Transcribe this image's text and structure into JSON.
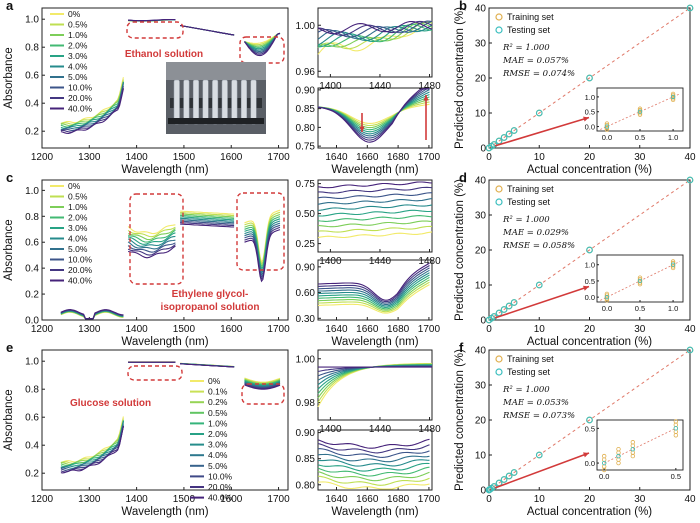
{
  "colors": {
    "dark_purple": "#3b1f63",
    "purple": "#46237a",
    "red_accent": "#d23a3a",
    "train_marker": "#e0b050",
    "test_marker": "#3cbfbf",
    "axis": "#222222"
  },
  "chart_data": [
    {
      "id": "a",
      "type": "line",
      "panel_label": "a",
      "annotation": "Ethanol solution",
      "photo": "photo-of-vials",
      "xlabel": "Wavelength (nm)",
      "ylabel": "Absorbance",
      "x_ticks": [
        "1200",
        "1300",
        "1400",
        "1500",
        "1600",
        "1700"
      ],
      "y_ticks": [
        "0.2",
        "0.4",
        "0.6",
        "0.8",
        "1.0"
      ],
      "xlim": [
        1200,
        1720
      ],
      "ylim": [
        0.08,
        1.08
      ],
      "legend": [
        "0%",
        "0.5%",
        "1.0%",
        "2.0%",
        "3.0%",
        "4.0%",
        "5.0%",
        "10.0%",
        "20.0%",
        "40.0%"
      ]
    },
    {
      "id": "a_zoom",
      "type": "line",
      "upper": {
        "x_ticks": [
          "1400",
          "1440",
          "1480"
        ],
        "y_ticks": [
          "0.96",
          "1.00"
        ],
        "xlim": [
          1390,
          1482
        ],
        "ylim": [
          0.955,
          1.015
        ]
      },
      "lower": {
        "x_ticks": [
          "1640",
          "1660",
          "1680",
          "1700"
        ],
        "y_ticks": [
          "0.75",
          "0.80",
          "0.85",
          "0.90"
        ],
        "xlim": [
          1628,
          1702
        ],
        "ylim": [
          0.745,
          0.905
        ]
      },
      "xlabel": "Wavelength (nm)"
    },
    {
      "id": "b",
      "type": "scatter",
      "panel_label": "b",
      "xlabel": "Actual concentration (%)",
      "ylabel": "Predicted concentration (%)",
      "x_ticks": [
        "0",
        "10",
        "20",
        "30",
        "40"
      ],
      "y_ticks": [
        "0",
        "10",
        "20",
        "30",
        "40"
      ],
      "xlim": [
        0,
        40
      ],
      "ylim": [
        0,
        40
      ],
      "series": [
        {
          "name": "Training set",
          "x": [
            0,
            0.5,
            1,
            2,
            3,
            4,
            5,
            10,
            20,
            40
          ],
          "y": [
            0,
            0.5,
            1,
            2,
            3,
            4,
            5,
            10,
            20,
            40
          ]
        },
        {
          "name": "Testing set",
          "x": [
            0,
            0.5,
            1,
            2,
            3,
            4,
            5,
            10,
            20,
            40
          ],
          "y": [
            0,
            0.5,
            1,
            2,
            3,
            4,
            5,
            10,
            20,
            40
          ]
        }
      ],
      "metrics": {
        "r2": "R² = 1.000",
        "mae": "MAE = 0.057%",
        "rmse": "RMSE = 0.074%"
      },
      "inset": {
        "x_ticks": [
          "0.0",
          "0.5",
          "1.0"
        ],
        "y_ticks": [
          "0.0",
          "0.5",
          "1.0"
        ],
        "xlim": [
          -0.15,
          1.15
        ],
        "ylim": [
          -0.15,
          1.3
        ]
      }
    },
    {
      "id": "c",
      "type": "line",
      "panel_label": "c",
      "annotation_line1": "Ethylene glycol-",
      "annotation_line2": "isopropanol solution",
      "xlabel": "Wavelength (nm)",
      "ylabel": "Absorbance",
      "x_ticks": [
        "1200",
        "1300",
        "1400",
        "1500",
        "1600",
        "1700"
      ],
      "y_ticks": [
        "0.0",
        "0.2",
        "0.4",
        "0.6",
        "0.8",
        "1.0"
      ],
      "xlim": [
        1200,
        1720
      ],
      "ylim": [
        0,
        1.08
      ],
      "legend": [
        "0%",
        "0.5%",
        "1.0%",
        "2.0%",
        "3.0%",
        "4.0%",
        "5.0%",
        "10.0%",
        "20.0%",
        "40.0%"
      ]
    },
    {
      "id": "c_zoom",
      "type": "line",
      "upper": {
        "x_ticks": [
          "1400",
          "1440",
          "1480"
        ],
        "y_ticks": [
          "0.25",
          "0.50",
          "0.75"
        ],
        "xlim": [
          1390,
          1482
        ],
        "ylim": [
          0.18,
          0.78
        ]
      },
      "lower": {
        "x_ticks": [
          "1640",
          "1660",
          "1680",
          "1700"
        ],
        "y_ticks": [
          "0.30",
          "0.60",
          "0.90"
        ],
        "xlim": [
          1628,
          1702
        ],
        "ylim": [
          0.28,
          0.98
        ]
      },
      "xlabel": "Wavelength (nm)"
    },
    {
      "id": "d",
      "type": "scatter",
      "panel_label": "d",
      "xlabel": "Actual concentration (%)",
      "ylabel": "Predicted concentration (%)",
      "x_ticks": [
        "0",
        "10",
        "20",
        "30",
        "40"
      ],
      "y_ticks": [
        "0",
        "10",
        "20",
        "30",
        "40"
      ],
      "xlim": [
        0,
        40
      ],
      "ylim": [
        0,
        40
      ],
      "series": [
        {
          "name": "Training set",
          "x": [
            0,
            0.5,
            1,
            2,
            3,
            4,
            5,
            10,
            20,
            40
          ],
          "y": [
            0,
            0.5,
            1,
            2,
            3,
            4,
            5,
            10,
            20,
            40
          ]
        },
        {
          "name": "Testing set",
          "x": [
            0,
            0.5,
            1,
            2,
            3,
            4,
            5,
            10,
            20,
            40
          ],
          "y": [
            0,
            0.5,
            1,
            2,
            3,
            4,
            5,
            10,
            20,
            40
          ]
        }
      ],
      "metrics": {
        "r2": "R² = 1.000",
        "mae": "MAE = 0.029%",
        "rmse": "RMSE = 0.058%"
      },
      "inset": {
        "x_ticks": [
          "0.0",
          "0.5",
          "1.0"
        ],
        "y_ticks": [
          "0.0",
          "0.5",
          "1.0"
        ],
        "xlim": [
          -0.15,
          1.15
        ],
        "ylim": [
          -0.15,
          1.3
        ]
      }
    },
    {
      "id": "e",
      "type": "line",
      "panel_label": "e",
      "annotation": "Glucose solution",
      "xlabel": "Wavelength (nm)",
      "ylabel": "Absorbance",
      "x_ticks": [
        "1200",
        "1300",
        "1400",
        "1500",
        "1600",
        "1700"
      ],
      "y_ticks": [
        "0.2",
        "0.4",
        "0.6",
        "0.8",
        "1.0"
      ],
      "xlim": [
        1200,
        1720
      ],
      "ylim": [
        0.08,
        1.08
      ],
      "legend": [
        "0%",
        "0.1%",
        "0.2%",
        "0.5%",
        "1.0%",
        "2.0%",
        "3.0%",
        "4.0%",
        "5.0%",
        "10.0%",
        "20.0%",
        "40.0%"
      ]
    },
    {
      "id": "e_zoom",
      "type": "line",
      "upper": {
        "x_ticks": [
          "1400",
          "1440",
          "1480"
        ],
        "y_ticks": [
          "0.98",
          "1.00"
        ],
        "xlim": [
          1390,
          1482
        ],
        "ylim": [
          0.972,
          1.004
        ]
      },
      "lower": {
        "x_ticks": [
          "1640",
          "1660",
          "1680",
          "1700"
        ],
        "y_ticks": [
          "0.80",
          "0.85",
          "0.90"
        ],
        "xlim": [
          1628,
          1702
        ],
        "ylim": [
          0.79,
          0.905
        ]
      },
      "xlabel": "Wavelength (nm)"
    },
    {
      "id": "f",
      "type": "scatter",
      "panel_label": "f",
      "xlabel": "Actual concentration (%)",
      "ylabel": "Predicted concentration (%)",
      "x_ticks": [
        "0",
        "10",
        "20",
        "30",
        "40"
      ],
      "y_ticks": [
        "0",
        "10",
        "20",
        "30",
        "40"
      ],
      "xlim": [
        0,
        40
      ],
      "ylim": [
        0,
        40
      ],
      "series": [
        {
          "name": "Training set",
          "x": [
            0,
            0.1,
            0.2,
            0.5,
            1,
            2,
            3,
            4,
            5,
            10,
            20,
            40
          ],
          "y": [
            0,
            0.1,
            0.2,
            0.5,
            1,
            2,
            3,
            4,
            5,
            10,
            20,
            40
          ]
        },
        {
          "name": "Testing set",
          "x": [
            0,
            0.1,
            0.2,
            0.5,
            1,
            2,
            3,
            4,
            5,
            10,
            20,
            40
          ],
          "y": [
            0,
            0.1,
            0.2,
            0.5,
            1,
            2,
            3,
            4,
            5,
            10,
            20,
            40
          ]
        }
      ],
      "metrics": {
        "r2": "R² = 1.000",
        "mae": "MAE = 0.053%",
        "rmse": "RMSE = 0.073%"
      },
      "inset": {
        "x_ticks": [
          "0.0",
          "0.5"
        ],
        "y_ticks": [
          "0.0",
          "0.5"
        ],
        "xlim": [
          -0.05,
          0.55
        ],
        "ylim": [
          -0.1,
          0.62
        ]
      }
    }
  ]
}
